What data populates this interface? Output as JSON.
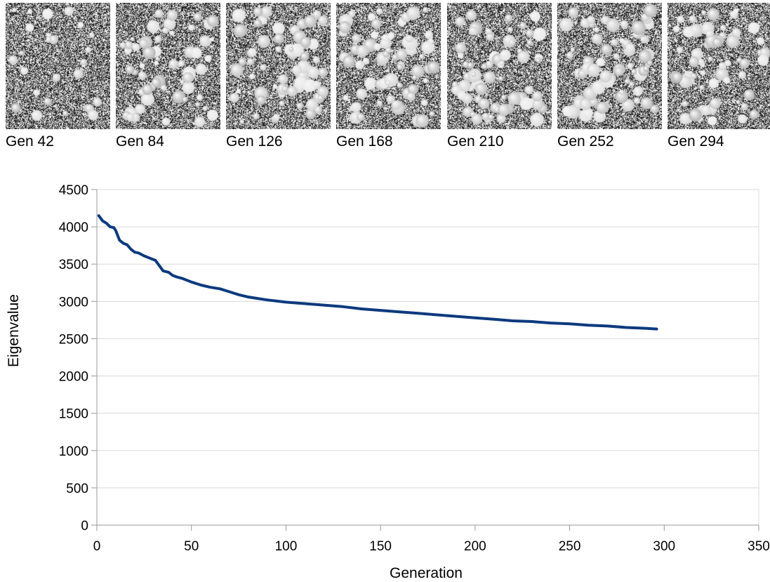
{
  "generations": [
    {
      "label": "Gen 42",
      "density": 0.15
    },
    {
      "label": "Gen 84",
      "density": 0.45
    },
    {
      "label": "Gen 126",
      "density": 0.55
    },
    {
      "label": "Gen 168",
      "density": 0.55
    },
    {
      "label": "Gen 210",
      "density": 0.55
    },
    {
      "label": "Gen 252",
      "density": 0.55
    },
    {
      "label": "Gen 294",
      "density": 0.5
    }
  ],
  "colors": {
    "line": "#0d3a7e",
    "grid": "#d9d9d9",
    "axis": "#999999"
  },
  "chart_data": {
    "type": "line",
    "xlabel": "Generation",
    "ylabel": "Eigenvalue",
    "xlim": [
      0,
      350
    ],
    "ylim": [
      0,
      4500
    ],
    "xticks": [
      0,
      50,
      100,
      150,
      200,
      250,
      300,
      350
    ],
    "yticks": [
      0,
      500,
      1000,
      1500,
      2000,
      2500,
      3000,
      3500,
      4000,
      4500
    ],
    "grid": "horizontal",
    "series": [
      {
        "x": [
          1,
          3,
          5,
          7,
          9,
          10,
          12,
          14,
          16,
          18,
          20,
          22,
          25,
          28,
          31,
          33,
          35,
          38,
          40,
          42,
          45,
          50,
          55,
          60,
          65,
          70,
          75,
          80,
          85,
          90,
          100,
          110,
          120,
          130,
          140,
          150,
          160,
          170,
          180,
          190,
          200,
          210,
          220,
          230,
          240,
          250,
          260,
          270,
          280,
          290,
          296
        ],
        "y": [
          4150,
          4080,
          4050,
          4000,
          3990,
          3950,
          3820,
          3780,
          3760,
          3700,
          3660,
          3650,
          3610,
          3580,
          3550,
          3480,
          3410,
          3390,
          3350,
          3330,
          3310,
          3260,
          3220,
          3190,
          3170,
          3130,
          3090,
          3060,
          3040,
          3020,
          2990,
          2970,
          2950,
          2930,
          2900,
          2880,
          2860,
          2840,
          2820,
          2800,
          2780,
          2760,
          2740,
          2730,
          2710,
          2700,
          2680,
          2670,
          2650,
          2640,
          2630
        ]
      }
    ]
  }
}
